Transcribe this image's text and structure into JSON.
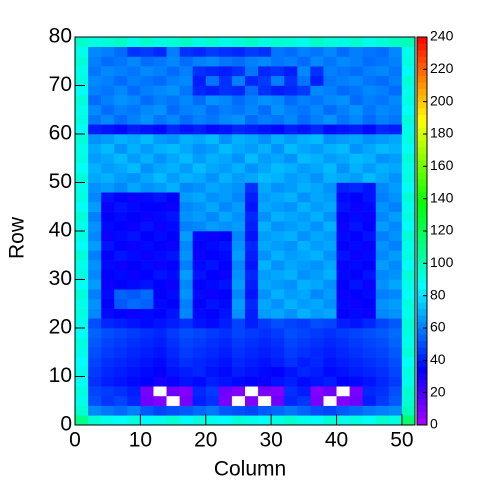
{
  "chart_data": {
    "type": "heatmap",
    "xlabel": "Column",
    "ylabel": "Row",
    "xlim": [
      0,
      52
    ],
    "ylim": [
      0,
      80
    ],
    "xticks": [
      0,
      10,
      20,
      30,
      40,
      50
    ],
    "yticks": [
      0,
      10,
      20,
      30,
      40,
      50,
      60,
      70,
      80
    ],
    "zlim": [
      0,
      240
    ],
    "zticks": [
      0,
      20,
      40,
      60,
      80,
      100,
      120,
      140,
      160,
      180,
      200,
      220,
      240
    ],
    "xbins": [
      0,
      2,
      4,
      6,
      8,
      10,
      12,
      14,
      16,
      18,
      20,
      22,
      24,
      26,
      28,
      30,
      32,
      34,
      36,
      38,
      40,
      42,
      44,
      46,
      48,
      50,
      52
    ],
    "ybins": [
      0,
      2,
      4,
      6,
      8,
      10,
      12,
      14,
      16,
      18,
      20,
      22,
      24,
      26,
      28,
      30,
      32,
      34,
      36,
      38,
      40,
      42,
      44,
      46,
      48,
      50,
      52,
      54,
      56,
      58,
      60,
      62,
      64,
      66,
      68,
      70,
      72,
      74,
      76,
      78,
      80
    ],
    "values": [
      [
        110,
        95,
        90,
        88,
        92,
        85,
        90,
        95,
        88,
        92,
        90,
        86,
        94,
        90,
        88,
        92,
        96,
        90,
        88,
        94,
        90,
        92,
        88,
        96,
        92,
        115
      ],
      [
        95,
        62,
        58,
        55,
        60,
        52,
        48,
        50,
        52,
        55,
        58,
        52,
        50,
        48,
        52,
        55,
        58,
        54,
        50,
        48,
        52,
        55,
        58,
        60,
        62,
        100
      ],
      [
        90,
        50,
        45,
        48,
        42,
        12,
        8,
        0,
        10,
        40,
        44,
        10,
        0,
        8,
        0,
        12,
        42,
        45,
        10,
        0,
        8,
        12,
        40,
        46,
        52,
        95
      ],
      [
        92,
        48,
        46,
        44,
        40,
        10,
        0,
        12,
        8,
        42,
        46,
        12,
        8,
        0,
        10,
        8,
        44,
        40,
        8,
        12,
        0,
        10,
        42,
        44,
        50,
        96
      ],
      [
        88,
        44,
        40,
        38,
        36,
        34,
        30,
        32,
        38,
        36,
        40,
        38,
        36,
        34,
        32,
        38,
        40,
        36,
        38,
        40,
        34,
        36,
        38,
        42,
        46,
        90
      ],
      [
        90,
        46,
        42,
        40,
        38,
        36,
        34,
        38,
        40,
        42,
        38,
        36,
        40,
        38,
        36,
        34,
        38,
        42,
        40,
        36,
        38,
        40,
        42,
        44,
        48,
        92
      ],
      [
        86,
        48,
        44,
        42,
        40,
        38,
        36,
        40,
        44,
        42,
        40,
        38,
        42,
        40,
        38,
        40,
        44,
        40,
        42,
        38,
        40,
        42,
        44,
        46,
        50,
        88
      ],
      [
        90,
        50,
        46,
        44,
        42,
        40,
        38,
        42,
        46,
        44,
        42,
        40,
        44,
        42,
        40,
        42,
        46,
        44,
        42,
        40,
        42,
        44,
        46,
        48,
        52,
        94
      ],
      [
        92,
        52,
        48,
        46,
        44,
        42,
        40,
        44,
        48,
        46,
        44,
        42,
        46,
        44,
        42,
        44,
        48,
        46,
        44,
        42,
        44,
        46,
        48,
        50,
        54,
        90
      ],
      [
        88,
        54,
        50,
        48,
        46,
        44,
        42,
        46,
        50,
        48,
        46,
        44,
        48,
        46,
        44,
        46,
        50,
        48,
        46,
        44,
        46,
        48,
        50,
        52,
        56,
        92
      ],
      [
        90,
        50,
        42,
        40,
        38,
        36,
        38,
        40,
        44,
        38,
        36,
        40,
        48,
        40,
        46,
        50,
        48,
        46,
        50,
        48,
        40,
        38,
        42,
        48,
        52,
        94
      ],
      [
        92,
        62,
        36,
        34,
        32,
        36,
        34,
        38,
        62,
        36,
        34,
        38,
        64,
        40,
        66,
        68,
        64,
        70,
        66,
        68,
        34,
        36,
        32,
        62,
        64,
        90
      ],
      [
        90,
        64,
        34,
        52,
        56,
        54,
        36,
        34,
        60,
        34,
        38,
        36,
        66,
        42,
        68,
        64,
        70,
        66,
        68,
        64,
        36,
        32,
        34,
        64,
        66,
        92
      ],
      [
        94,
        60,
        36,
        54,
        52,
        56,
        34,
        36,
        64,
        36,
        32,
        34,
        62,
        38,
        64,
        70,
        66,
        68,
        62,
        66,
        32,
        34,
        36,
        60,
        62,
        88
      ],
      [
        88,
        66,
        32,
        34,
        36,
        38,
        34,
        32,
        62,
        34,
        36,
        38,
        66,
        40,
        68,
        66,
        64,
        70,
        68,
        64,
        34,
        38,
        32,
        64,
        68,
        90
      ],
      [
        92,
        62,
        34,
        36,
        32,
        34,
        38,
        36,
        66,
        38,
        34,
        32,
        64,
        42,
        66,
        68,
        70,
        64,
        66,
        70,
        36,
        34,
        38,
        62,
        64,
        94
      ],
      [
        90,
        64,
        36,
        32,
        34,
        36,
        32,
        34,
        60,
        36,
        38,
        34,
        62,
        38,
        70,
        64,
        68,
        66,
        64,
        68,
        32,
        36,
        34,
        66,
        62,
        88
      ],
      [
        94,
        60,
        34,
        38,
        36,
        32,
        36,
        38,
        64,
        32,
        34,
        36,
        66,
        40,
        64,
        70,
        66,
        68,
        70,
        64,
        38,
        32,
        36,
        62,
        66,
        92
      ],
      [
        88,
        66,
        38,
        34,
        32,
        36,
        34,
        32,
        62,
        34,
        36,
        38,
        64,
        42,
        68,
        66,
        64,
        70,
        66,
        68,
        34,
        36,
        32,
        64,
        60,
        90
      ],
      [
        92,
        62,
        32,
        36,
        38,
        34,
        36,
        34,
        66,
        36,
        32,
        34,
        62,
        38,
        66,
        68,
        70,
        64,
        68,
        66,
        36,
        34,
        38,
        60,
        64,
        94
      ],
      [
        90,
        64,
        36,
        34,
        32,
        38,
        32,
        36,
        60,
        62,
        66,
        64,
        66,
        40,
        70,
        64,
        66,
        68,
        64,
        70,
        32,
        38,
        34,
        66,
        62,
        88
      ],
      [
        94,
        60,
        34,
        36,
        34,
        32,
        36,
        38,
        64,
        66,
        62,
        68,
        64,
        42,
        64,
        70,
        68,
        66,
        70,
        64,
        34,
        36,
        32,
        62,
        66,
        92
      ],
      [
        88,
        66,
        32,
        38,
        36,
        34,
        34,
        32,
        62,
        64,
        68,
        62,
        66,
        38,
        68,
        66,
        64,
        70,
        66,
        68,
        38,
        32,
        36,
        64,
        60,
        90
      ],
      [
        92,
        62,
        38,
        34,
        32,
        36,
        38,
        34,
        66,
        68,
        64,
        66,
        62,
        40,
        66,
        68,
        70,
        64,
        68,
        66,
        36,
        34,
        38,
        60,
        64,
        94
      ],
      [
        90,
        64,
        66,
        62,
        68,
        64,
        66,
        70,
        62,
        64,
        68,
        66,
        64,
        44,
        68,
        64,
        66,
        70,
        68,
        64,
        40,
        42,
        38,
        62,
        66,
        88
      ],
      [
        94,
        68,
        70,
        66,
        64,
        68,
        72,
        66,
        70,
        68,
        64,
        70,
        66,
        68,
        72,
        70,
        66,
        68,
        64,
        70,
        68,
        66,
        72,
        68,
        64,
        92
      ],
      [
        88,
        70,
        66,
        68,
        72,
        64,
        68,
        70,
        66,
        72,
        68,
        66,
        70,
        64,
        68,
        72,
        70,
        66,
        68,
        72,
        64,
        70,
        66,
        70,
        68,
        90
      ],
      [
        92,
        66,
        68,
        72,
        66,
        70,
        64,
        68,
        72,
        66,
        70,
        68,
        64,
        72,
        66,
        68,
        64,
        72,
        70,
        66,
        68,
        72,
        70,
        64,
        66,
        94
      ],
      [
        90,
        68,
        72,
        64,
        70,
        66,
        70,
        72,
        68,
        64,
        66,
        72,
        68,
        66,
        70,
        64,
        72,
        68,
        66,
        70,
        72,
        64,
        68,
        72,
        70,
        88
      ],
      [
        94,
        64,
        66,
        70,
        68,
        72,
        66,
        64,
        70,
        68,
        72,
        64,
        70,
        68,
        64,
        70,
        66,
        70,
        72,
        64,
        66,
        68,
        64,
        66,
        68,
        92
      ],
      [
        88,
        40,
        38,
        36,
        40,
        38,
        36,
        42,
        38,
        40,
        36,
        38,
        42,
        40,
        38,
        36,
        40,
        38,
        42,
        36,
        38,
        40,
        36,
        42,
        40,
        90
      ],
      [
        92,
        58,
        62,
        56,
        60,
        64,
        58,
        62,
        56,
        60,
        58,
        62,
        64,
        56,
        60,
        58,
        62,
        56,
        60,
        64,
        58,
        62,
        56,
        60,
        58,
        94
      ],
      [
        90,
        62,
        56,
        60,
        58,
        62,
        64,
        56,
        60,
        62,
        56,
        60,
        58,
        62,
        56,
        64,
        60,
        58,
        62,
        56,
        60,
        64,
        58,
        62,
        60,
        88
      ],
      [
        94,
        56,
        60,
        64,
        62,
        56,
        60,
        58,
        62,
        56,
        64,
        62,
        56,
        60,
        64,
        62,
        56,
        60,
        58,
        62,
        64,
        56,
        60,
        58,
        62,
        92
      ],
      [
        88,
        60,
        58,
        62,
        56,
        60,
        62,
        64,
        58,
        42,
        40,
        44,
        42,
        56,
        44,
        40,
        42,
        46,
        62,
        60,
        56,
        58,
        62,
        60,
        56,
        90
      ],
      [
        92,
        62,
        60,
        56,
        60,
        58,
        56,
        60,
        62,
        40,
        58,
        44,
        60,
        42,
        46,
        60,
        44,
        58,
        40,
        58,
        60,
        62,
        58,
        56,
        60,
        94
      ],
      [
        90,
        58,
        62,
        60,
        58,
        62,
        60,
        56,
        60,
        44,
        42,
        40,
        44,
        58,
        42,
        44,
        40,
        62,
        44,
        60,
        58,
        56,
        60,
        62,
        58,
        88
      ],
      [
        94,
        60,
        56,
        58,
        62,
        56,
        58,
        62,
        56,
        60,
        62,
        58,
        56,
        60,
        62,
        58,
        60,
        56,
        62,
        58,
        62,
        60,
        56,
        58,
        60,
        92
      ],
      [
        90,
        62,
        60,
        56,
        44,
        46,
        42,
        60,
        44,
        42,
        46,
        44,
        42,
        46,
        44,
        58,
        56,
        60,
        58,
        62,
        56,
        60,
        58,
        56,
        62,
        90
      ],
      [
        96,
        92,
        94,
        98,
        90,
        96,
        92,
        94,
        98,
        92,
        96,
        90,
        94,
        98,
        92,
        96,
        94,
        90,
        98,
        94,
        92,
        96,
        90,
        94,
        98,
        100
      ]
    ]
  }
}
